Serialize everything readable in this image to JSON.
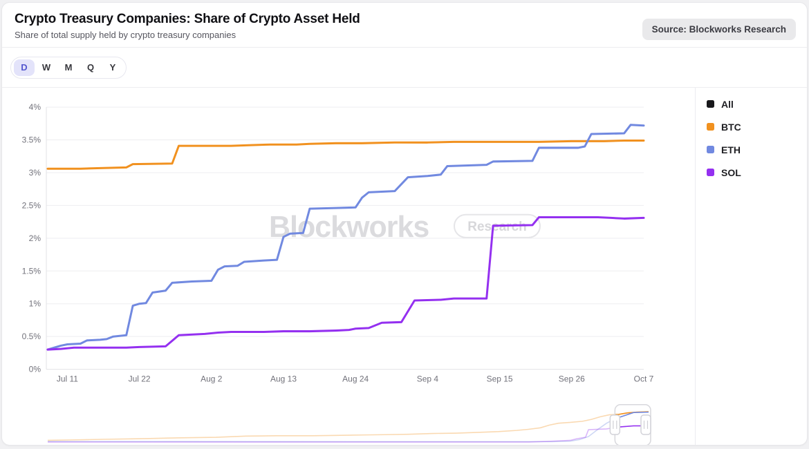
{
  "header": {
    "title": "Crypto Treasury Companies: Share of Crypto Asset Held",
    "subtitle": "Share of total supply held by crypto treasury companies",
    "source_badge": "Source: Blockworks Research"
  },
  "toolbar": {
    "range_options": [
      "D",
      "W",
      "M",
      "Q",
      "Y"
    ],
    "selected": "D"
  },
  "legend": {
    "items": [
      {
        "label": "All",
        "color": "#18181b",
        "line_visible": false
      },
      {
        "label": "BTC",
        "color": "#f1911f",
        "line_visible": true
      },
      {
        "label": "ETH",
        "color": "#7189e0",
        "line_visible": true
      },
      {
        "label": "SOL",
        "color": "#9430f0",
        "line_visible": true
      }
    ]
  },
  "watermark": {
    "brand": "Blockworks",
    "badge": "Research"
  },
  "colors": {
    "grid": "#ededf0",
    "axis": "#e2e2e6",
    "tick_text": "#71717a",
    "watermark_text": "#dbdbde",
    "watermark_pill_border": "#e5e5e8",
    "selection_border": "#d7d7dc",
    "handle_border": "#d2d2d8"
  },
  "chart_data": {
    "type": "line",
    "title": "Crypto Treasury Companies: Share of Crypto Asset Held",
    "x_unit": "days since Jul 8",
    "x_range_days": [
      0,
      91
    ],
    "x_ticks": [
      {
        "day": 3,
        "label": "Jul 11"
      },
      {
        "day": 14,
        "label": "Jul 22"
      },
      {
        "day": 25,
        "label": "Aug 2"
      },
      {
        "day": 36,
        "label": "Aug 13"
      },
      {
        "day": 47,
        "label": "Aug 24"
      },
      {
        "day": 58,
        "label": "Sep 4"
      },
      {
        "day": 69,
        "label": "Sep 15"
      },
      {
        "day": 80,
        "label": "Sep 26"
      },
      {
        "day": 91,
        "label": "Oct 7"
      }
    ],
    "y_axis": {
      "min": 0,
      "max": 4,
      "tick_step": 0.5,
      "unit": "%",
      "tick_labels": [
        "0%",
        "0.5%",
        "1%",
        "1.5%",
        "2%",
        "2.5%",
        "3%",
        "3.5%",
        "4%"
      ]
    },
    "grid": true,
    "legend_position": "right",
    "series": [
      {
        "name": "BTC",
        "color": "#f1911f",
        "points": [
          [
            0,
            3.06
          ],
          [
            5,
            3.06
          ],
          [
            8,
            3.07
          ],
          [
            12,
            3.08
          ],
          [
            13,
            3.13
          ],
          [
            19,
            3.14
          ],
          [
            20,
            3.41
          ],
          [
            28,
            3.41
          ],
          [
            31,
            3.42
          ],
          [
            34,
            3.43
          ],
          [
            38,
            3.43
          ],
          [
            40,
            3.44
          ],
          [
            44,
            3.45
          ],
          [
            48,
            3.45
          ],
          [
            53,
            3.46
          ],
          [
            58,
            3.46
          ],
          [
            62,
            3.47
          ],
          [
            70,
            3.47
          ],
          [
            75,
            3.47
          ],
          [
            80,
            3.48
          ],
          [
            85,
            3.48
          ],
          [
            88,
            3.49
          ],
          [
            91,
            3.49
          ]
        ]
      },
      {
        "name": "ETH",
        "color": "#7189e0",
        "points": [
          [
            0,
            0.3
          ],
          [
            1,
            0.33
          ],
          [
            2,
            0.36
          ],
          [
            3,
            0.38
          ],
          [
            5,
            0.39
          ],
          [
            6,
            0.44
          ],
          [
            8,
            0.45
          ],
          [
            9,
            0.46
          ],
          [
            10,
            0.5
          ],
          [
            12,
            0.52
          ],
          [
            13,
            0.97
          ],
          [
            14,
            1.0
          ],
          [
            15,
            1.01
          ],
          [
            16,
            1.17
          ],
          [
            18,
            1.2
          ],
          [
            19,
            1.32
          ],
          [
            22,
            1.34
          ],
          [
            25,
            1.35
          ],
          [
            26,
            1.52
          ],
          [
            27,
            1.57
          ],
          [
            29,
            1.58
          ],
          [
            30,
            1.64
          ],
          [
            33,
            1.66
          ],
          [
            35,
            1.67
          ],
          [
            36,
            2.02
          ],
          [
            37,
            2.07
          ],
          [
            39,
            2.08
          ],
          [
            40,
            2.45
          ],
          [
            44,
            2.46
          ],
          [
            47,
            2.47
          ],
          [
            48,
            2.62
          ],
          [
            49,
            2.7
          ],
          [
            53,
            2.72
          ],
          [
            55,
            2.93
          ],
          [
            58,
            2.95
          ],
          [
            60,
            2.97
          ],
          [
            61,
            3.1
          ],
          [
            67,
            3.12
          ],
          [
            68,
            3.17
          ],
          [
            74,
            3.18
          ],
          [
            75,
            3.38
          ],
          [
            81,
            3.38
          ],
          [
            82,
            3.4
          ],
          [
            83,
            3.59
          ],
          [
            88,
            3.6
          ],
          [
            89,
            3.73
          ],
          [
            91,
            3.72
          ]
        ]
      },
      {
        "name": "SOL",
        "color": "#9430f0",
        "points": [
          [
            0,
            0.3
          ],
          [
            2,
            0.31
          ],
          [
            4,
            0.33
          ],
          [
            12,
            0.33
          ],
          [
            14,
            0.34
          ],
          [
            18,
            0.35
          ],
          [
            20,
            0.52
          ],
          [
            24,
            0.54
          ],
          [
            26,
            0.56
          ],
          [
            28,
            0.57
          ],
          [
            33,
            0.57
          ],
          [
            36,
            0.58
          ],
          [
            40,
            0.58
          ],
          [
            44,
            0.59
          ],
          [
            46,
            0.6
          ],
          [
            47,
            0.62
          ],
          [
            49,
            0.63
          ],
          [
            51,
            0.71
          ],
          [
            54,
            0.72
          ],
          [
            56,
            1.05
          ],
          [
            60,
            1.06
          ],
          [
            62,
            1.08
          ],
          [
            67,
            1.08
          ],
          [
            68,
            2.19
          ],
          [
            74,
            2.2
          ],
          [
            75,
            2.32
          ],
          [
            84,
            2.32
          ],
          [
            86,
            2.31
          ],
          [
            88,
            2.3
          ],
          [
            91,
            2.31
          ]
        ]
      }
    ],
    "navigator": {
      "description": "range brush mini-chart, selection covers right-most segment",
      "selection_frac": [
        0.944,
        1.0
      ],
      "series": [
        {
          "name": "BTC",
          "color": "#f1911f",
          "points": [
            [
              0,
              0.9
            ],
            [
              0.04,
              0.89
            ],
            [
              0.07,
              0.88
            ],
            [
              0.1,
              0.87
            ],
            [
              0.14,
              0.86
            ],
            [
              0.17,
              0.85
            ],
            [
              0.2,
              0.84
            ],
            [
              0.24,
              0.83
            ],
            [
              0.28,
              0.82
            ],
            [
              0.33,
              0.79
            ],
            [
              0.38,
              0.78
            ],
            [
              0.44,
              0.78
            ],
            [
              0.48,
              0.77
            ],
            [
              0.52,
              0.76
            ],
            [
              0.56,
              0.75
            ],
            [
              0.6,
              0.74
            ],
            [
              0.64,
              0.72
            ],
            [
              0.68,
              0.71
            ],
            [
              0.72,
              0.69
            ],
            [
              0.75,
              0.67
            ],
            [
              0.78,
              0.64
            ],
            [
              0.8,
              0.61
            ],
            [
              0.82,
              0.57
            ],
            [
              0.835,
              0.5
            ],
            [
              0.85,
              0.45
            ],
            [
              0.87,
              0.43
            ],
            [
              0.89,
              0.4
            ],
            [
              0.905,
              0.35
            ],
            [
              0.92,
              0.28
            ],
            [
              0.935,
              0.23
            ],
            [
              0.95,
              0.22
            ],
            [
              0.965,
              0.18
            ],
            [
              0.98,
              0.16
            ],
            [
              1,
              0.15
            ]
          ]
        },
        {
          "name": "ETH",
          "color": "#7189e0",
          "points": [
            [
              0,
              0.93
            ],
            [
              0.5,
              0.935
            ],
            [
              0.84,
              0.935
            ],
            [
              0.87,
              0.92
            ],
            [
              0.885,
              0.88
            ],
            [
              0.9,
              0.8
            ],
            [
              0.915,
              0.62
            ],
            [
              0.93,
              0.45
            ],
            [
              0.945,
              0.33
            ],
            [
              0.96,
              0.25
            ],
            [
              0.975,
              0.17
            ],
            [
              1,
              0.16
            ]
          ]
        },
        {
          "name": "SOL",
          "color": "#9430f0",
          "points": [
            [
              0,
              0.945
            ],
            [
              0.8,
              0.945
            ],
            [
              0.83,
              0.93
            ],
            [
              0.85,
              0.915
            ],
            [
              0.87,
              0.9
            ],
            [
              0.88,
              0.86
            ],
            [
              0.895,
              0.82
            ],
            [
              0.9,
              0.62
            ],
            [
              0.93,
              0.6
            ],
            [
              0.95,
              0.55
            ],
            [
              0.975,
              0.52
            ],
            [
              1,
              0.52
            ]
          ]
        }
      ]
    }
  }
}
